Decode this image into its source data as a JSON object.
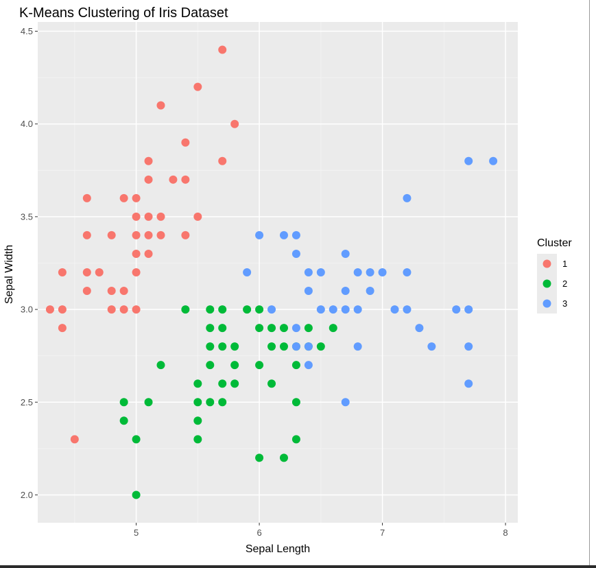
{
  "chart_data": {
    "type": "scatter",
    "title": "K-Means Clustering of Iris Dataset",
    "xlabel": "Sepal Length",
    "ylabel": "Sepal Width",
    "xlim": [
      4.2,
      8.1
    ],
    "ylim": [
      1.85,
      4.55
    ],
    "x_ticks": [
      {
        "value": 5,
        "label": "5"
      },
      {
        "value": 6,
        "label": "6"
      },
      {
        "value": 7,
        "label": "7"
      },
      {
        "value": 8,
        "label": "8"
      }
    ],
    "y_ticks": [
      {
        "value": 2.0,
        "label": "2.0"
      },
      {
        "value": 2.5,
        "label": "2.5"
      },
      {
        "value": 3.0,
        "label": "3.0"
      },
      {
        "value": 3.5,
        "label": "3.5"
      },
      {
        "value": 4.0,
        "label": "4.0"
      },
      {
        "value": 4.5,
        "label": "4.5"
      }
    ],
    "grid": true,
    "panel_color": "#ebebeb",
    "legend": {
      "title": "Cluster",
      "position": "right"
    },
    "series": [
      {
        "name": "1",
        "color": "#f8766d",
        "points": [
          [
            4.3,
            3.0
          ],
          [
            4.4,
            3.2
          ],
          [
            4.4,
            3.0
          ],
          [
            4.4,
            2.9
          ],
          [
            4.5,
            2.3
          ],
          [
            4.6,
            3.6
          ],
          [
            4.6,
            3.4
          ],
          [
            4.6,
            3.2
          ],
          [
            4.6,
            3.1
          ],
          [
            4.7,
            3.2
          ],
          [
            4.8,
            3.4
          ],
          [
            4.8,
            3.1
          ],
          [
            4.8,
            3.0
          ],
          [
            4.9,
            3.6
          ],
          [
            4.9,
            3.1
          ],
          [
            4.9,
            3.0
          ],
          [
            5.0,
            3.6
          ],
          [
            5.0,
            3.5
          ],
          [
            5.0,
            3.4
          ],
          [
            5.0,
            3.3
          ],
          [
            5.0,
            3.2
          ],
          [
            5.0,
            3.0
          ],
          [
            5.1,
            3.8
          ],
          [
            5.1,
            3.7
          ],
          [
            5.1,
            3.5
          ],
          [
            5.1,
            3.4
          ],
          [
            5.1,
            3.3
          ],
          [
            5.2,
            4.1
          ],
          [
            5.2,
            3.5
          ],
          [
            5.2,
            3.4
          ],
          [
            5.3,
            3.7
          ],
          [
            5.4,
            3.9
          ],
          [
            5.4,
            3.7
          ],
          [
            5.4,
            3.4
          ],
          [
            5.5,
            4.2
          ],
          [
            5.5,
            3.5
          ],
          [
            5.7,
            4.4
          ],
          [
            5.7,
            3.8
          ],
          [
            5.8,
            4.0
          ]
        ]
      },
      {
        "name": "2",
        "color": "#00ba38",
        "points": [
          [
            4.9,
            2.5
          ],
          [
            4.9,
            2.4
          ],
          [
            5.0,
            2.3
          ],
          [
            5.0,
            2.0
          ],
          [
            5.1,
            2.5
          ],
          [
            5.2,
            2.7
          ],
          [
            5.4,
            3.0
          ],
          [
            5.5,
            2.6
          ],
          [
            5.5,
            2.5
          ],
          [
            5.5,
            2.4
          ],
          [
            5.5,
            2.3
          ],
          [
            5.6,
            3.0
          ],
          [
            5.6,
            2.9
          ],
          [
            5.6,
            2.8
          ],
          [
            5.6,
            2.7
          ],
          [
            5.6,
            2.5
          ],
          [
            5.7,
            3.0
          ],
          [
            5.7,
            2.9
          ],
          [
            5.7,
            2.8
          ],
          [
            5.7,
            2.6
          ],
          [
            5.7,
            2.5
          ],
          [
            5.8,
            2.8
          ],
          [
            5.8,
            2.7
          ],
          [
            5.8,
            2.6
          ],
          [
            5.9,
            3.0
          ],
          [
            6.0,
            3.0
          ],
          [
            6.0,
            2.9
          ],
          [
            6.0,
            2.7
          ],
          [
            6.0,
            2.2
          ],
          [
            6.1,
            2.9
          ],
          [
            6.1,
            2.8
          ],
          [
            6.1,
            2.6
          ],
          [
            6.2,
            2.9
          ],
          [
            6.2,
            2.8
          ],
          [
            6.2,
            2.2
          ],
          [
            6.3,
            2.8
          ],
          [
            6.3,
            2.7
          ],
          [
            6.3,
            2.5
          ],
          [
            6.3,
            2.3
          ],
          [
            6.4,
            2.9
          ],
          [
            6.4,
            2.8
          ],
          [
            6.5,
            2.8
          ],
          [
            6.6,
            2.9
          ]
        ]
      },
      {
        "name": "3",
        "color": "#619cff",
        "points": [
          [
            5.9,
            3.2
          ],
          [
            6.0,
            3.4
          ],
          [
            6.1,
            3.0
          ],
          [
            6.2,
            3.4
          ],
          [
            6.3,
            3.4
          ],
          [
            6.3,
            3.3
          ],
          [
            6.3,
            2.9
          ],
          [
            6.3,
            2.8
          ],
          [
            6.4,
            3.2
          ],
          [
            6.4,
            3.1
          ],
          [
            6.4,
            2.8
          ],
          [
            6.4,
            2.7
          ],
          [
            6.5,
            3.2
          ],
          [
            6.5,
            3.0
          ],
          [
            6.6,
            3.0
          ],
          [
            6.7,
            3.3
          ],
          [
            6.7,
            3.1
          ],
          [
            6.7,
            3.0
          ],
          [
            6.7,
            2.5
          ],
          [
            6.8,
            3.2
          ],
          [
            6.8,
            3.0
          ],
          [
            6.8,
            2.8
          ],
          [
            6.9,
            3.2
          ],
          [
            6.9,
            3.1
          ],
          [
            7.0,
            3.2
          ],
          [
            7.1,
            3.0
          ],
          [
            7.2,
            3.6
          ],
          [
            7.2,
            3.2
          ],
          [
            7.2,
            3.0
          ],
          [
            7.3,
            2.9
          ],
          [
            7.4,
            2.8
          ],
          [
            7.6,
            3.0
          ],
          [
            7.7,
            3.8
          ],
          [
            7.7,
            3.0
          ],
          [
            7.7,
            2.8
          ],
          [
            7.7,
            2.6
          ],
          [
            7.9,
            3.8
          ]
        ]
      }
    ]
  }
}
